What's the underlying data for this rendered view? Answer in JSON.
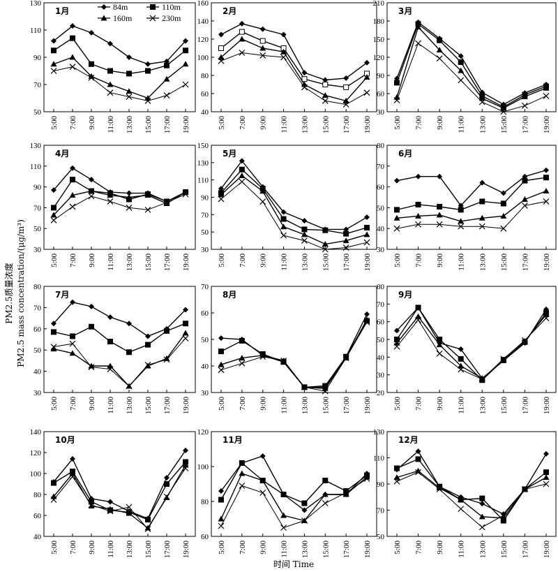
{
  "figure": {
    "ylabel_cn": "PM2.5质量浓度",
    "ylabel_en": "PM2.5 mass concentration/(μg/m³)",
    "xlabel": "时间 Time"
  },
  "legend": [
    "84m",
    "110m",
    "160m",
    "230m"
  ],
  "chart_data": [
    {
      "type": "line",
      "title": "1月",
      "categories": [
        "5:00",
        "7:00",
        "9:00",
        "11:00",
        "13:00",
        "15:00",
        "17:00",
        "19:00"
      ],
      "ylim": [
        50,
        130
      ],
      "yticks": [
        50,
        70,
        90,
        110,
        130
      ],
      "series": [
        {
          "name": "84m",
          "values": [
            102,
            113,
            108,
            100,
            90,
            85,
            87,
            102
          ]
        },
        {
          "name": "110m",
          "values": [
            95,
            104,
            85,
            80,
            78,
            80,
            84,
            95
          ]
        },
        {
          "name": "160m",
          "values": [
            85,
            90,
            76,
            70,
            65,
            60,
            74,
            85
          ]
        },
        {
          "name": "230m",
          "values": [
            80,
            83,
            75,
            64,
            61,
            58,
            62,
            70
          ]
        }
      ]
    },
    {
      "type": "line",
      "title": "2月",
      "categories": [
        "5:00",
        "7:00",
        "9:00",
        "11:00",
        "13:00",
        "15:00",
        "17:00",
        "19:00"
      ],
      "ylim": [
        40,
        160
      ],
      "yticks": [
        40,
        60,
        80,
        100,
        120,
        140,
        160
      ],
      "series": [
        {
          "name": "84m",
          "values": [
            125,
            137,
            131,
            125,
            83,
            75,
            77,
            94
          ]
        },
        {
          "name": "110m",
          "values": [
            110,
            128,
            118,
            110,
            76,
            70,
            67,
            82
          ]
        },
        {
          "name": "160m",
          "values": [
            100,
            120,
            110,
            106,
            70,
            58,
            52,
            78
          ]
        },
        {
          "name": "230m",
          "values": [
            96,
            105,
            102,
            100,
            67,
            52,
            48,
            61
          ]
        }
      ]
    },
    {
      "type": "line",
      "title": "3月",
      "categories": [
        "5:00",
        "7:00",
        "9:00",
        "11:00",
        "13:00",
        "15:00",
        "17:00",
        "19:00"
      ],
      "ylim": [
        30,
        210
      ],
      "yticks": [
        30,
        60,
        90,
        120,
        150,
        180,
        210
      ],
      "series": [
        {
          "name": "84m",
          "values": [
            85,
            178,
            151,
            122,
            62,
            42,
            61,
            75
          ]
        },
        {
          "name": "110m",
          "values": [
            78,
            175,
            148,
            112,
            56,
            38,
            58,
            72
          ]
        },
        {
          "name": "160m",
          "values": [
            54,
            170,
            132,
            98,
            52,
            36,
            55,
            69
          ]
        },
        {
          "name": "230m",
          "values": [
            49,
            143,
            118,
            82,
            46,
            30,
            40,
            56
          ]
        }
      ]
    },
    {
      "type": "line",
      "title": "4月",
      "categories": [
        "5:00",
        "7:00",
        "9:00",
        "11:00",
        "13:00",
        "15:00",
        "17:00",
        "19:00"
      ],
      "ylim": [
        30,
        130
      ],
      "yticks": [
        30,
        50,
        70,
        90,
        110,
        130
      ],
      "series": [
        {
          "name": "84m",
          "values": [
            87,
            108,
            97,
            85,
            84,
            84,
            76,
            85
          ]
        },
        {
          "name": "110m",
          "values": [
            70,
            97,
            86,
            84,
            78,
            83,
            76,
            85
          ]
        },
        {
          "name": "160m",
          "values": [
            63,
            82,
            86,
            82,
            80,
            82,
            74,
            85
          ]
        },
        {
          "name": "230m",
          "values": [
            58,
            71,
            81,
            76,
            70,
            68,
            75,
            83
          ]
        }
      ]
    },
    {
      "type": "line",
      "title": "5月",
      "categories": [
        "5:00",
        "7:00",
        "9:00",
        "11:00",
        "13:00",
        "15:00",
        "17:00",
        "19:00"
      ],
      "ylim": [
        30,
        150
      ],
      "yticks": [
        30,
        50,
        70,
        90,
        110,
        130,
        150
      ],
      "series": [
        {
          "name": "84m",
          "values": [
            100,
            132,
            102,
            73,
            63,
            53,
            53,
            67
          ]
        },
        {
          "name": "110m",
          "values": [
            95,
            122,
            100,
            65,
            53,
            52,
            48,
            55
          ]
        },
        {
          "name": "160m",
          "values": [
            93,
            115,
            97,
            56,
            47,
            36,
            40,
            47
          ]
        },
        {
          "name": "230m",
          "values": [
            88,
            108,
            85,
            46,
            40,
            30,
            32,
            38
          ]
        }
      ]
    },
    {
      "type": "line",
      "title": "6月",
      "categories": [
        "5:00",
        "7:00",
        "9:00",
        "11:00",
        "13:00",
        "15:00",
        "17:00",
        "19:00"
      ],
      "ylim": [
        30,
        80
      ],
      "yticks": [
        30,
        40,
        50,
        60,
        70,
        80
      ],
      "series": [
        {
          "name": "84m",
          "values": [
            63,
            65,
            65,
            51,
            62,
            57,
            65,
            68
          ]
        },
        {
          "name": "110m",
          "values": [
            49,
            51.5,
            50.5,
            49,
            53,
            52,
            63,
            64.5
          ]
        },
        {
          "name": "160m",
          "values": [
            45,
            46,
            46.5,
            43.5,
            45,
            46,
            54,
            58
          ]
        },
        {
          "name": "230m",
          "values": [
            40,
            42,
            42,
            41,
            41,
            40,
            51,
            53
          ]
        }
      ]
    },
    {
      "type": "line",
      "title": "7月",
      "categories": [
        "5:00",
        "7:00",
        "9:00",
        "11:00",
        "13:00",
        "15:00",
        "17:00",
        "19:00"
      ],
      "ylim": [
        30,
        80
      ],
      "yticks": [
        30,
        40,
        50,
        60,
        70,
        80
      ],
      "series": [
        {
          "name": "84m",
          "values": [
            62.5,
            72.5,
            70.5,
            65.5,
            62.5,
            56.5,
            60,
            69
          ]
        },
        {
          "name": "110m",
          "values": [
            58.5,
            56.5,
            61,
            54,
            49,
            52.5,
            59,
            62.5
          ]
        },
        {
          "name": "160m",
          "values": [
            50.5,
            48.5,
            42.5,
            42.5,
            33,
            42.5,
            46,
            58
          ]
        },
        {
          "name": "230m",
          "values": [
            51.5,
            53,
            42,
            41,
            33,
            43,
            45.5,
            55.5
          ]
        }
      ]
    },
    {
      "type": "line",
      "title": "8月",
      "categories": [
        "5:00",
        "7:00",
        "9:00",
        "11:00",
        "13:00",
        "15:00",
        "17:00",
        "19:00"
      ],
      "ylim": [
        30,
        70
      ],
      "yticks": [
        30,
        40,
        50,
        60,
        70
      ],
      "series": [
        {
          "name": "84m",
          "values": [
            50.5,
            50,
            44,
            42,
            32,
            32,
            43.5,
            59.5
          ]
        },
        {
          "name": "110m",
          "values": [
            45.5,
            49.5,
            44.5,
            41.5,
            32,
            32.5,
            43.5,
            57
          ]
        },
        {
          "name": "160m",
          "values": [
            40.5,
            43,
            44,
            41.5,
            32,
            31.5,
            43,
            57.5
          ]
        },
        {
          "name": "230m",
          "values": [
            38.5,
            41,
            43.5,
            42,
            32,
            30.5,
            43,
            56.5
          ]
        }
      ]
    },
    {
      "type": "line",
      "title": "9月",
      "categories": [
        "5:00",
        "7:00",
        "9:00",
        "11:00",
        "13:00",
        "15:00",
        "17:00",
        "19:00"
      ],
      "ylim": [
        20,
        80
      ],
      "yticks": [
        20,
        30,
        40,
        50,
        60,
        70,
        80
      ],
      "series": [
        {
          "name": "84m",
          "values": [
            55,
            68,
            48,
            44.5,
            28,
            38,
            48,
            67
          ]
        },
        {
          "name": "110m",
          "values": [
            50,
            68,
            50,
            39,
            27,
            38.5,
            48.5,
            65
          ]
        },
        {
          "name": "160m",
          "values": [
            48,
            63,
            47,
            35,
            28,
            38,
            49,
            64
          ]
        },
        {
          "name": "230m",
          "values": [
            46,
            61,
            42,
            33,
            27.5,
            39,
            49.5,
            62
          ]
        }
      ]
    },
    {
      "type": "line",
      "title": "10月",
      "categories": [
        "5:00",
        "7:00",
        "9:00",
        "11:00",
        "13:00",
        "15:00",
        "17:00",
        "19:00"
      ],
      "ylim": [
        40,
        140
      ],
      "yticks": [
        40,
        60,
        80,
        100,
        120,
        140
      ],
      "series": [
        {
          "name": "84m",
          "values": [
            92,
            114,
            76,
            73,
            64,
            57,
            96,
            122
          ]
        },
        {
          "name": "110m",
          "values": [
            91,
            102,
            73,
            65,
            63,
            56,
            90,
            111
          ]
        },
        {
          "name": "160m",
          "values": [
            78,
            100,
            69,
            66,
            62,
            48,
            77,
            108
          ]
        },
        {
          "name": "230m",
          "values": [
            75,
            97,
            70,
            64,
            68,
            47,
            78,
            105
          ]
        }
      ]
    },
    {
      "type": "line",
      "title": "11月",
      "categories": [
        "5:00",
        "7:00",
        "9:00",
        "11:00",
        "13:00",
        "15:00",
        "17:00",
        "19:00"
      ],
      "ylim": [
        60,
        120
      ],
      "yticks": [
        60,
        80,
        100,
        120
      ],
      "series": [
        {
          "name": "84m",
          "values": [
            86,
            102,
            106,
            84,
            75,
            84,
            84,
            96
          ]
        },
        {
          "name": "110m",
          "values": [
            81,
            102,
            92,
            84,
            79,
            92,
            86,
            95
          ]
        },
        {
          "name": "160m",
          "values": [
            70,
            96,
            92,
            72,
            69,
            84,
            84,
            94
          ]
        },
        {
          "name": "230m",
          "values": [
            66,
            89,
            85,
            65,
            69,
            79,
            85,
            93
          ]
        }
      ]
    },
    {
      "type": "line",
      "title": "12月",
      "categories": [
        "5:00",
        "7:00",
        "9:00",
        "11:00",
        "13:00",
        "15:00",
        "17:00",
        "19:00"
      ],
      "ylim": [
        50,
        130
      ],
      "yticks": [
        50,
        70,
        90,
        110,
        130
      ],
      "series": [
        {
          "name": "84m",
          "values": [
            101,
            115,
            88,
            80,
            75,
            67,
            86,
            113
          ]
        },
        {
          "name": "110m",
          "values": [
            102,
            109,
            88,
            78,
            79,
            62,
            86,
            99
          ]
        },
        {
          "name": "160m",
          "values": [
            95,
            100,
            87,
            78,
            65,
            64,
            86,
            95
          ]
        },
        {
          "name": "230m",
          "values": [
            92,
            99,
            86,
            71,
            57,
            66,
            86,
            90
          ]
        }
      ]
    }
  ]
}
